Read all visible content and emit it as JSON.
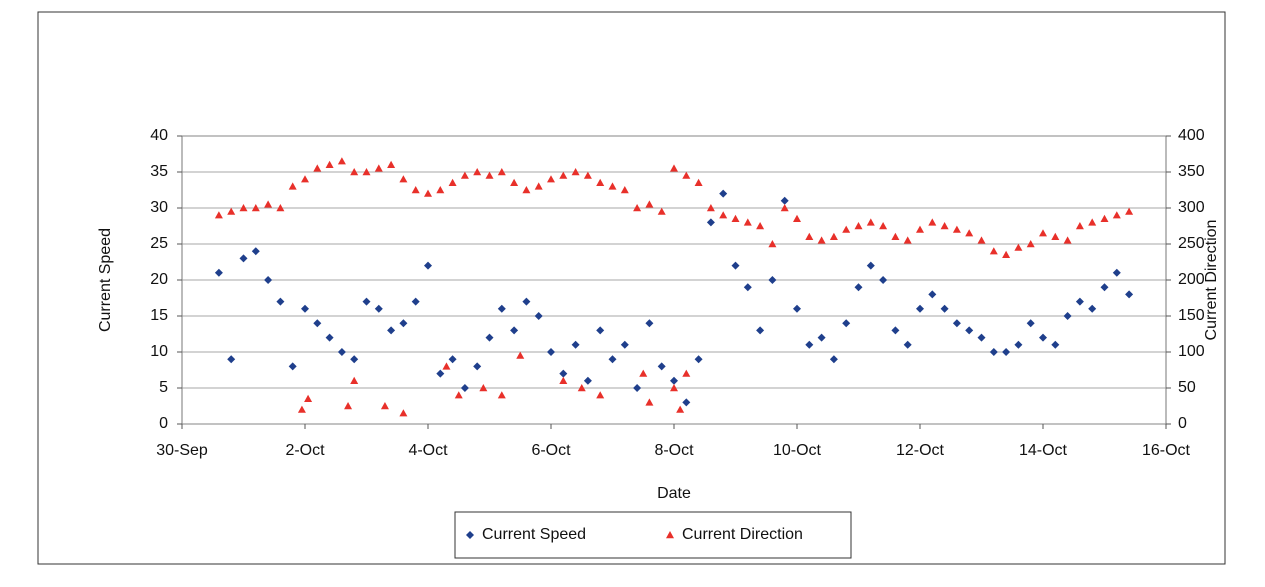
{
  "chart_data": {
    "type": "scatter",
    "x_label": "Date",
    "y_label": "Current Speed",
    "y2_label": "Current Direction",
    "xlim": [
      0,
      16
    ],
    "xticks": [
      {
        "value": 0,
        "label": "30-Sep"
      },
      {
        "value": 2,
        "label": "2-Oct"
      },
      {
        "value": 4,
        "label": "4-Oct"
      },
      {
        "value": 6,
        "label": "6-Oct"
      },
      {
        "value": 8,
        "label": "8-Oct"
      },
      {
        "value": 10,
        "label": "10-Oct"
      },
      {
        "value": 12,
        "label": "12-Oct"
      },
      {
        "value": 14,
        "label": "14-Oct"
      },
      {
        "value": 16,
        "label": "16-Oct"
      }
    ],
    "ylim": [
      0,
      40
    ],
    "yticks": [
      0,
      5,
      10,
      15,
      20,
      25,
      30,
      35,
      40
    ],
    "y2lim": [
      0,
      400
    ],
    "y2ticks": [
      0,
      50,
      100,
      150,
      200,
      250,
      300,
      350,
      400
    ],
    "grid": true,
    "legend": "bottom",
    "series": [
      {
        "name": "Current Speed",
        "color": "#1f3f8c",
        "marker": "diamond",
        "x": [
          0.6,
          0.8,
          1.0,
          1.2,
          1.4,
          1.6,
          1.8,
          2.0,
          2.2,
          2.4,
          2.6,
          2.8,
          3.0,
          3.2,
          3.4,
          3.6,
          3.8,
          4.0,
          4.2,
          4.4,
          4.6,
          4.8,
          5.0,
          5.2,
          5.4,
          5.6,
          5.8,
          6.0,
          6.2,
          6.4,
          6.6,
          6.8,
          7.0,
          7.2,
          7.4,
          7.6,
          7.8,
          8.0,
          8.2,
          8.4,
          8.6,
          8.8,
          9.0,
          9.2,
          9.4,
          9.6,
          9.8,
          10.0,
          10.2,
          10.4,
          10.6,
          10.8,
          11.0,
          11.2,
          11.4,
          11.6,
          11.8,
          12.0,
          12.2,
          12.4,
          12.6,
          12.8,
          13.0,
          13.2,
          13.4,
          13.6,
          13.8,
          14.0,
          14.2,
          14.4,
          14.6,
          14.8,
          15.0,
          15.2,
          15.4
        ],
        "values": [
          21,
          9,
          23,
          24,
          20,
          17,
          8,
          16,
          14,
          12,
          10,
          9,
          17,
          16,
          13,
          14,
          17,
          22,
          7,
          9,
          5,
          8,
          12,
          16,
          13,
          17,
          15,
          10,
          7,
          11,
          6,
          13,
          9,
          11,
          5,
          14,
          8,
          6,
          3,
          9,
          28,
          32,
          22,
          19,
          13,
          20,
          31,
          16,
          11,
          12,
          9,
          14,
          19,
          22,
          20,
          13,
          11,
          16,
          18,
          16,
          14,
          13,
          12,
          10,
          10,
          11,
          14,
          12,
          11,
          15,
          17,
          16,
          19,
          21,
          18
        ]
      },
      {
        "name": "Current Direction",
        "color": "#e8302a",
        "marker": "triangle",
        "axis": "y2",
        "x": [
          0.6,
          0.8,
          1.0,
          1.2,
          1.4,
          1.6,
          1.8,
          2.0,
          2.2,
          2.4,
          2.6,
          2.8,
          3.0,
          3.2,
          3.4,
          3.6,
          3.8,
          4.0,
          4.2,
          4.4,
          4.6,
          4.8,
          5.0,
          5.2,
          5.4,
          5.6,
          5.8,
          6.0,
          6.2,
          6.4,
          6.6,
          6.8,
          7.0,
          7.2,
          7.4,
          7.6,
          7.8,
          8.0,
          8.2,
          8.4,
          8.6,
          8.8,
          9.0,
          9.2,
          9.4,
          9.6,
          9.8,
          10.0,
          10.2,
          10.4,
          10.6,
          10.8,
          11.0,
          11.2,
          11.4,
          11.6,
          11.8,
          12.0,
          12.2,
          12.4,
          12.6,
          12.8,
          13.0,
          13.2,
          13.4,
          13.6,
          13.8,
          14.0,
          14.2,
          14.4,
          14.6,
          14.8,
          15.0,
          15.2,
          15.4,
          1.95,
          2.05,
          2.7,
          2.8,
          3.3,
          3.6,
          4.3,
          4.5,
          4.9,
          5.2,
          5.5,
          6.2,
          6.5,
          6.8,
          7.5,
          7.6,
          8.0,
          8.1,
          8.2
        ],
        "values": [
          290,
          295,
          300,
          300,
          305,
          300,
          330,
          340,
          355,
          360,
          365,
          350,
          350,
          355,
          360,
          340,
          325,
          320,
          325,
          335,
          345,
          350,
          345,
          350,
          335,
          325,
          330,
          340,
          345,
          350,
          345,
          335,
          330,
          325,
          300,
          305,
          295,
          355,
          345,
          335,
          300,
          290,
          285,
          280,
          275,
          250,
          300,
          285,
          260,
          255,
          260,
          270,
          275,
          280,
          275,
          260,
          255,
          270,
          280,
          275,
          270,
          265,
          255,
          240,
          235,
          245,
          250,
          265,
          260,
          255,
          275,
          280,
          285,
          290,
          295,
          20,
          35,
          25,
          60,
          25,
          15,
          80,
          40,
          50,
          40,
          95,
          60,
          50,
          40,
          70,
          30,
          50,
          20,
          70
        ]
      }
    ]
  }
}
